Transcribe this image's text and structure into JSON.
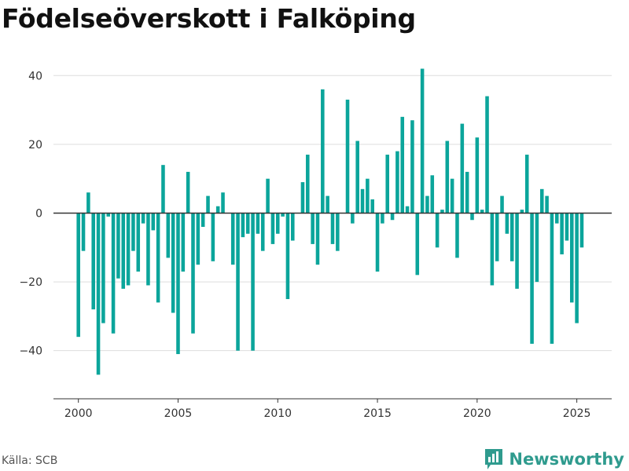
{
  "chart_data": {
    "type": "bar",
    "title": "Födelseöverskott i Falköping",
    "xlabel": "",
    "ylabel": "",
    "x_tick_labels": [
      "2000",
      "2005",
      "2010",
      "2015",
      "2020",
      "2025"
    ],
    "x_ticks": [
      2000,
      2005,
      2010,
      2015,
      2020,
      2025
    ],
    "y_ticks": [
      -40,
      -20,
      0,
      20,
      40
    ],
    "y_tick_labels": [
      "−40",
      "−20",
      "0",
      "20",
      "40"
    ],
    "ylim": [
      -54,
      46
    ],
    "xlim": [
      1998.75,
      2026.75
    ],
    "grid": true,
    "bar_color": "#0ba59b",
    "zero_line_color": "#333333",
    "series": [
      {
        "x": [
          2000.0,
          2000.25,
          2000.5,
          2000.75,
          2001.0,
          2001.25,
          2001.5,
          2001.75,
          2002.0,
          2002.25,
          2002.5,
          2002.75,
          2003.0,
          2003.25,
          2003.5,
          2003.75,
          2004.0,
          2004.25,
          2004.5,
          2004.75,
          2005.0,
          2005.25,
          2005.5,
          2005.75,
          2006.0,
          2006.25,
          2006.5,
          2006.75,
          2007.0,
          2007.25,
          2007.5,
          2007.75,
          2008.0,
          2008.25,
          2008.5,
          2008.75,
          2009.0,
          2009.25,
          2009.5,
          2009.75,
          2010.0,
          2010.25,
          2010.5,
          2010.75,
          2011.0,
          2011.25,
          2011.5,
          2011.75,
          2012.0,
          2012.25,
          2012.5,
          2012.75,
          2013.0,
          2013.25,
          2013.5,
          2013.75,
          2014.0,
          2014.25,
          2014.5,
          2014.75,
          2015.0,
          2015.25,
          2015.5,
          2015.75,
          2016.0,
          2016.25,
          2016.5,
          2016.75,
          2017.0,
          2017.25,
          2017.5,
          2017.75,
          2018.0,
          2018.25,
          2018.5,
          2018.75,
          2019.0,
          2019.25,
          2019.5,
          2019.75,
          2020.0,
          2020.25,
          2020.5,
          2020.75,
          2021.0,
          2021.25,
          2021.5,
          2021.75,
          2022.0,
          2022.25,
          2022.5,
          2022.75,
          2023.0,
          2023.25,
          2023.5,
          2023.75,
          2024.0,
          2024.25,
          2024.5,
          2024.75,
          2025.0,
          2025.25
        ],
        "values": [
          -36,
          -11,
          6,
          -28,
          -47,
          -32,
          -1,
          -35,
          -19,
          -22,
          -21,
          -11,
          -17,
          -3,
          -21,
          -5,
          -26,
          14,
          -13,
          -29,
          -41,
          -17,
          12,
          -35,
          -15,
          -4,
          5,
          -14,
          2,
          6,
          0,
          -15,
          -40,
          -7,
          -6,
          -40,
          -6,
          -11,
          10,
          -9,
          -6,
          -1,
          -25,
          -8,
          0,
          9,
          17,
          -9,
          -15,
          36,
          5,
          -9,
          -11,
          0,
          33,
          -3,
          21,
          7,
          10,
          4,
          -17,
          -3,
          17,
          -2,
          18,
          28,
          2,
          27,
          -18,
          42,
          5,
          11,
          -10,
          1,
          21,
          10,
          -13,
          26,
          12,
          -2,
          22,
          1,
          34,
          -21,
          -14,
          5,
          -6,
          -14,
          -22,
          1,
          17,
          -38,
          -20,
          7,
          5,
          -38,
          -3,
          -12,
          -8,
          -26,
          -32,
          -10
        ]
      }
    ]
  },
  "footer": {
    "source": "Källa: SCB",
    "brand": "Newsworthy",
    "brand_color": "#2f9b8e",
    "logo_icon": "bar-chart-logo-icon"
  }
}
